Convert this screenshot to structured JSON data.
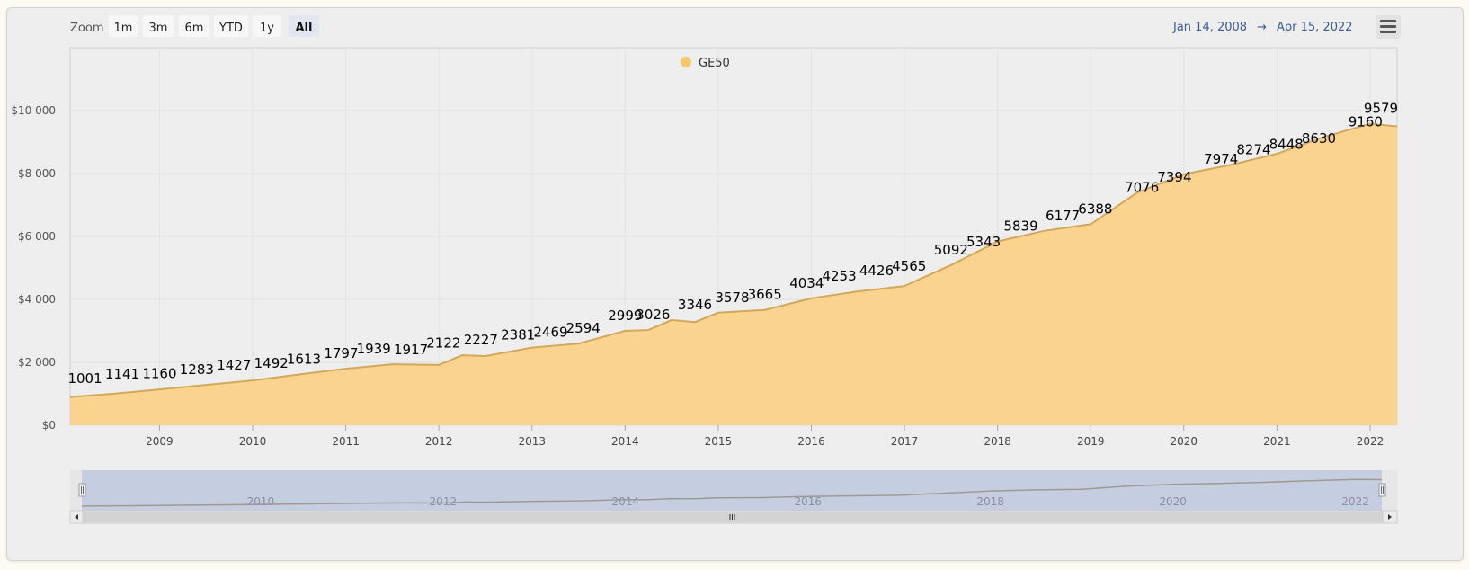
{
  "toolbar": {
    "zoom_label": "Zoom",
    "zoom_buttons": [
      "1m",
      "3m",
      "6m",
      "YTD",
      "1y",
      "All"
    ],
    "active_zoom": "All",
    "range_from": "Jan 14, 2008",
    "range_arrow": "→",
    "range_to": "Apr 15, 2022",
    "menu_icon": "hamburger-menu-icon"
  },
  "colors": {
    "area_fill": "#fad38f",
    "area_line": "#d2a85b",
    "legend_marker": "#f7c86a",
    "navigator_mask": "#c5cde0",
    "range_text": "#3a5998"
  },
  "chart_data": {
    "type": "area",
    "series": [
      {
        "name": "GE50",
        "x": [
          2008.04,
          2008.5,
          2009.0,
          2009.5,
          2010.0,
          2010.5,
          2011.0,
          2011.5,
          2012.0,
          2012.25,
          2012.5,
          2013.0,
          2013.5,
          2014.0,
          2014.25,
          2014.5,
          2014.75,
          2015.0,
          2015.5,
          2016.0,
          2016.5,
          2017.0,
          2017.5,
          2018.0,
          2018.5,
          2019.0,
          2019.5,
          2020.0,
          2020.5,
          2021.0,
          2021.5,
          2022.0,
          2022.29
        ],
        "values": [
          900,
          1001,
          1141,
          1283,
          1427,
          1613,
          1797,
          1939,
          1917,
          2227,
          2200,
          2469,
          2594,
          2999,
          3026,
          3346,
          3278,
          3578,
          3665,
          4034,
          4253,
          4426,
          5092,
          5839,
          6177,
          6388,
          7394,
          7974,
          8274,
          8630,
          9160,
          9579,
          9500
        ]
      }
    ],
    "data_labels": [
      {
        "x": 2008.2,
        "value": 1001
      },
      {
        "x": 2008.6,
        "value": 1141
      },
      {
        "x": 2009.0,
        "value": 1160
      },
      {
        "x": 2009.4,
        "value": 1283
      },
      {
        "x": 2009.8,
        "value": 1427
      },
      {
        "x": 2010.2,
        "value": 1492
      },
      {
        "x": 2010.55,
        "value": 1613
      },
      {
        "x": 2010.95,
        "value": 1797
      },
      {
        "x": 2011.3,
        "value": 1939
      },
      {
        "x": 2011.7,
        "value": 1917
      },
      {
        "x": 2012.05,
        "value": 2122
      },
      {
        "x": 2012.45,
        "value": 2227
      },
      {
        "x": 2012.85,
        "value": 2381
      },
      {
        "x": 2013.2,
        "value": 2469
      },
      {
        "x": 2013.55,
        "value": 2594
      },
      {
        "x": 2014.0,
        "value": 2999
      },
      {
        "x": 2014.3,
        "value": 3026
      },
      {
        "x": 2014.75,
        "value": 3346
      },
      {
        "x": 2015.15,
        "value": 3578
      },
      {
        "x": 2015.5,
        "value": 3665
      },
      {
        "x": 2015.95,
        "value": 4034
      },
      {
        "x": 2016.3,
        "value": 4253
      },
      {
        "x": 2016.7,
        "value": 4426
      },
      {
        "x": 2017.05,
        "value": 4565
      },
      {
        "x": 2017.5,
        "value": 5092
      },
      {
        "x": 2017.85,
        "value": 5343
      },
      {
        "x": 2018.25,
        "value": 5839
      },
      {
        "x": 2018.7,
        "value": 6177
      },
      {
        "x": 2019.05,
        "value": 6388
      },
      {
        "x": 2019.55,
        "value": 7076
      },
      {
        "x": 2019.9,
        "value": 7394
      },
      {
        "x": 2020.4,
        "value": 7974
      },
      {
        "x": 2020.75,
        "value": 8274
      },
      {
        "x": 2021.1,
        "value": 8448
      },
      {
        "x": 2021.45,
        "value": 8630
      },
      {
        "x": 2021.95,
        "value": 9160
      },
      {
        "x": 2022.35,
        "value": 9579
      }
    ],
    "x_ticks": [
      2009,
      2010,
      2011,
      2012,
      2013,
      2014,
      2015,
      2016,
      2017,
      2018,
      2019,
      2020,
      2021,
      2022
    ],
    "y_ticks": [
      0,
      2000,
      4000,
      6000,
      8000,
      10000
    ],
    "y_tick_labels": [
      "$0",
      "$2 000",
      "$4 000",
      "$6 000",
      "$8 000",
      "$10 000"
    ],
    "xlim": [
      2008.04,
      2022.29
    ],
    "ylim": [
      0,
      12000
    ],
    "navigator_ticks": [
      2010,
      2012,
      2014,
      2016,
      2018,
      2020,
      2022
    ],
    "grid": true,
    "legend": "top-center",
    "title": "",
    "xlabel": "",
    "ylabel": ""
  }
}
